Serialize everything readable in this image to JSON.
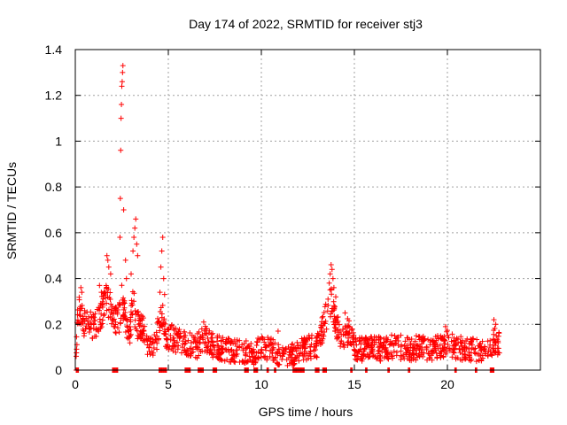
{
  "chart_data": {
    "type": "scatter",
    "title": "Day 174 of 2022, SRMTID for receiver stj3",
    "xlabel": "GPS time / hours",
    "ylabel": "SRMTID / TECUs",
    "xlim": [
      0,
      25
    ],
    "ylim": [
      0,
      1.4
    ],
    "xticks": [
      0,
      5,
      10,
      15,
      20
    ],
    "yticks": [
      0,
      0.2,
      0.4,
      0.6,
      0.8,
      1,
      1.2,
      1.4
    ],
    "xtick_labels": [
      "0",
      "5",
      "10",
      "15",
      "20"
    ],
    "ytick_labels": [
      "0",
      "0.2",
      "0.4",
      "0.6",
      "0.8",
      "1",
      "1.2",
      "1.4"
    ],
    "grid": true,
    "marker": "+",
    "color": "#ff0000",
    "series": [
      {
        "name": "SRMTID",
        "profile": [
          [
            0.0,
            0.0
          ],
          [
            0.15,
            0.27
          ],
          [
            0.3,
            0.24
          ],
          [
            0.5,
            0.2
          ],
          [
            0.7,
            0.22
          ],
          [
            0.9,
            0.19
          ],
          [
            1.1,
            0.2
          ],
          [
            1.4,
            0.25
          ],
          [
            1.7,
            0.32
          ],
          [
            1.9,
            0.26
          ],
          [
            2.1,
            0.22
          ],
          [
            2.3,
            0.2
          ],
          [
            2.5,
            0.3
          ],
          [
            2.7,
            0.22
          ],
          [
            2.9,
            0.15
          ],
          [
            3.1,
            0.3
          ],
          [
            3.3,
            0.2
          ],
          [
            3.6,
            0.18
          ],
          [
            3.8,
            0.14
          ],
          [
            4.0,
            0.1
          ],
          [
            4.3,
            0.11
          ],
          [
            4.5,
            0.2
          ],
          [
            4.7,
            0.22
          ],
          [
            4.9,
            0.15
          ],
          [
            5.5,
            0.13
          ],
          [
            6.0,
            0.12
          ],
          [
            6.5,
            0.1
          ],
          [
            7.0,
            0.14
          ],
          [
            7.5,
            0.1
          ],
          [
            8.0,
            0.09
          ],
          [
            8.5,
            0.08
          ],
          [
            9.0,
            0.08
          ],
          [
            9.5,
            0.07
          ],
          [
            10.0,
            0.1
          ],
          [
            10.5,
            0.09
          ],
          [
            11.0,
            0.07
          ],
          [
            11.5,
            0.06
          ],
          [
            12.0,
            0.08
          ],
          [
            12.5,
            0.1
          ],
          [
            13.0,
            0.1
          ],
          [
            13.5,
            0.24
          ],
          [
            13.8,
            0.32
          ],
          [
            14.0,
            0.2
          ],
          [
            14.3,
            0.14
          ],
          [
            14.7,
            0.17
          ],
          [
            15.0,
            0.1
          ],
          [
            15.5,
            0.09
          ],
          [
            16.0,
            0.1
          ],
          [
            16.5,
            0.09
          ],
          [
            17.0,
            0.1
          ],
          [
            17.5,
            0.1
          ],
          [
            18.0,
            0.09
          ],
          [
            18.5,
            0.1
          ],
          [
            19.0,
            0.09
          ],
          [
            19.5,
            0.1
          ],
          [
            20.0,
            0.12
          ],
          [
            20.5,
            0.09
          ],
          [
            21.0,
            0.1
          ],
          [
            21.5,
            0.08
          ],
          [
            22.0,
            0.09
          ],
          [
            22.3,
            0.1
          ],
          [
            22.5,
            0.13
          ],
          [
            22.8,
            0.11
          ]
        ],
        "spikes": [
          [
            2.4,
            0.58
          ],
          [
            2.42,
            0.75
          ],
          [
            2.44,
            0.96
          ],
          [
            2.46,
            1.1
          ],
          [
            2.48,
            1.16
          ],
          [
            2.5,
            1.24
          ],
          [
            2.52,
            1.26
          ],
          [
            2.54,
            1.3
          ],
          [
            2.56,
            1.33
          ],
          [
            2.6,
            0.7
          ],
          [
            2.7,
            0.48
          ],
          [
            2.75,
            0.4
          ],
          [
            3.1,
            0.52
          ],
          [
            3.15,
            0.58
          ],
          [
            3.2,
            0.62
          ],
          [
            3.25,
            0.66
          ],
          [
            3.3,
            0.55
          ],
          [
            3.35,
            0.5
          ],
          [
            3.0,
            0.42
          ],
          [
            1.7,
            0.5
          ],
          [
            1.75,
            0.48
          ],
          [
            1.8,
            0.45
          ],
          [
            1.9,
            0.42
          ],
          [
            4.55,
            0.34
          ],
          [
            4.6,
            0.45
          ],
          [
            4.65,
            0.52
          ],
          [
            4.7,
            0.58
          ],
          [
            4.75,
            0.4
          ],
          [
            4.8,
            0.33
          ],
          [
            13.65,
            0.38
          ],
          [
            13.7,
            0.42
          ],
          [
            13.75,
            0.46
          ],
          [
            13.8,
            0.44
          ],
          [
            13.85,
            0.4
          ],
          [
            13.9,
            0.36
          ],
          [
            14.5,
            0.25
          ],
          [
            0.3,
            0.36
          ],
          [
            0.35,
            0.34
          ],
          [
            1.3,
            0.37
          ],
          [
            1.4,
            0.34
          ],
          [
            6.9,
            0.21
          ],
          [
            10.9,
            0.17
          ],
          [
            22.5,
            0.22
          ],
          [
            22.6,
            0.2
          ],
          [
            19.9,
            0.19
          ],
          [
            14.0,
            0.32
          ]
        ],
        "zero_segments": [
          [
            0.05,
            0.2
          ],
          [
            2.0,
            2.3
          ],
          [
            4.5,
            4.9
          ],
          [
            5.9,
            6.2
          ],
          [
            6.6,
            6.9
          ],
          [
            7.4,
            7.6
          ],
          [
            9.1,
            9.3
          ],
          [
            9.6,
            9.8
          ],
          [
            10.3,
            10.4
          ],
          [
            10.7,
            10.8
          ],
          [
            11.7,
            12.3
          ],
          [
            12.9,
            13.1
          ],
          [
            13.3,
            13.5
          ],
          [
            14.8,
            14.9
          ],
          [
            15.6,
            15.7
          ],
          [
            16.8,
            16.9
          ],
          [
            17.9,
            18.0
          ],
          [
            20.4,
            20.5
          ],
          [
            21.5,
            21.6
          ],
          [
            22.3,
            22.5
          ]
        ],
        "point_count": 1400,
        "noise": 0.045
      }
    ]
  }
}
